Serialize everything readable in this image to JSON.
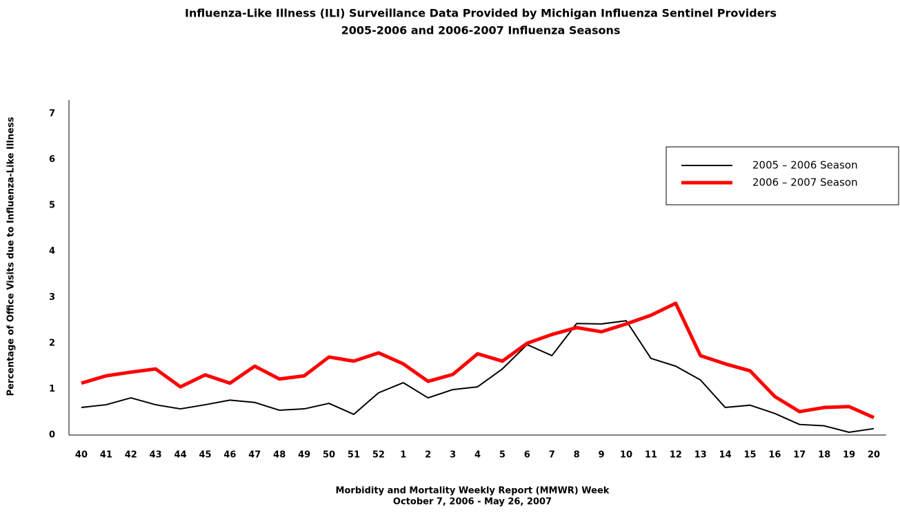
{
  "chart_data": {
    "type": "line",
    "title": "Influenza-Like Illness (ILI) Surveillance Data Provided by Michigan Influenza Sentinel Providers",
    "subtitle": "2005-2006 and 2006-2007 Influenza Seasons",
    "y_label": "Percentage of Office Visits due to Influenza-Like Illness",
    "x_label": [
      "Morbidity and Mortality Weekly Report (MMWR) Week",
      "October 7, 2006 - May 26, 2007"
    ],
    "categories": [
      "40",
      "41",
      "42",
      "43",
      "44",
      "45",
      "46",
      "47",
      "48",
      "49",
      "50",
      "51",
      "52",
      "1",
      "2",
      "3",
      "4",
      "5",
      "6",
      "7",
      "8",
      "9",
      "10",
      "11",
      "12",
      "13",
      "14",
      "15",
      "16",
      "17",
      "18",
      "19",
      "20"
    ],
    "series": [
      {
        "name": "2005 – 2006 Season",
        "color": "#000000",
        "width": 2,
        "values": [
          0.6,
          0.66,
          0.81,
          0.66,
          0.57,
          0.66,
          0.76,
          0.71,
          0.54,
          0.57,
          0.69,
          0.45,
          0.92,
          1.14,
          0.81,
          0.99,
          1.05,
          1.44,
          1.97,
          1.73,
          2.43,
          2.42,
          2.49,
          1.67,
          1.5,
          1.2,
          0.6,
          0.65,
          0.47,
          0.23,
          0.2,
          0.06,
          0.14
        ]
      },
      {
        "name": "2006 – 2007 Season",
        "color": "#ff0000",
        "width": 5,
        "values": [
          1.13,
          1.29,
          1.37,
          1.44,
          1.05,
          1.31,
          1.13,
          1.5,
          1.22,
          1.29,
          1.7,
          1.61,
          1.79,
          1.55,
          1.17,
          1.32,
          1.77,
          1.61,
          2.0,
          2.19,
          2.34,
          2.25,
          2.42,
          2.61,
          2.87,
          1.73,
          1.55,
          1.4,
          0.84,
          0.51,
          0.6,
          0.62,
          0.38
        ]
      }
    ],
    "ylim": [
      0,
      7.3
    ],
    "yticks": [
      0,
      1,
      2,
      3,
      4,
      5,
      6,
      7
    ],
    "grid": false,
    "legend": "upper right"
  }
}
